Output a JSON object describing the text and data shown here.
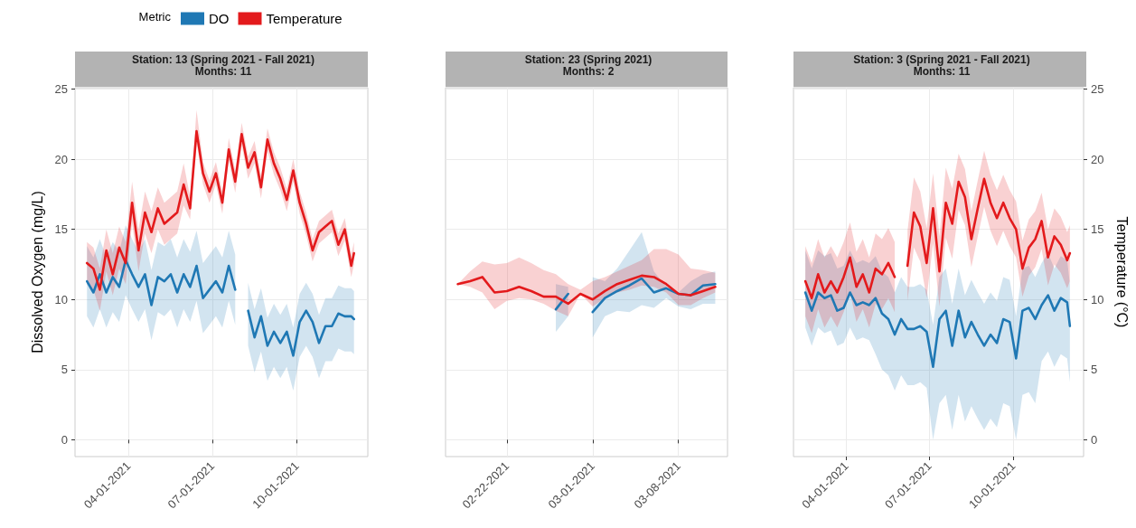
{
  "chart_data": [
    {
      "type": "line",
      "title": "Station: 13 (Spring 2021 - Fall 2021)",
      "subtitle": "Months: 11",
      "ylabel": "Dissolved Oxygen (mg/L)",
      "legend": "top",
      "legend_title": "Metric",
      "grid": true,
      "x": [
        "2021-02-15",
        "2021-02-22",
        "2021-03-01",
        "2021-03-08",
        "2021-03-15",
        "2021-03-22",
        "2021-03-29",
        "2021-04-05",
        "2021-04-12",
        "2021-04-19",
        "2021-04-26",
        "2021-05-03",
        "2021-05-10",
        "2021-05-17",
        "2021-05-24",
        "2021-05-31",
        "2021-06-07",
        "2021-06-14",
        "2021-06-21",
        "2021-06-28",
        "2021-07-05",
        "2021-07-12",
        "2021-07-19",
        "2021-07-26",
        "2021-08-02",
        "2021-08-09",
        "2021-08-16",
        "2021-08-23",
        "2021-08-30",
        "2021-09-06",
        "2021-09-13",
        "2021-09-20",
        "2021-09-27",
        "2021-10-04",
        "2021-10-11",
        "2021-10-18",
        "2021-10-25",
        "2021-11-01",
        "2021-11-08",
        "2021-11-15",
        "2021-11-22",
        "2021-11-29",
        "2021-12-02"
      ],
      "xlim": [
        "2021-02-02",
        "2021-12-17"
      ],
      "xticks": [
        {
          "value": "2021-04-01",
          "label": "04-01-2021"
        },
        {
          "value": "2021-07-01",
          "label": "07-01-2021"
        },
        {
          "value": "2021-10-01",
          "label": "10-01-2021"
        }
      ],
      "ylim": [
        -1.2,
        25.1
      ],
      "yticks": [
        0,
        5,
        10,
        15,
        20,
        25
      ],
      "series": [
        {
          "name": "DO",
          "color": "#1f78b4",
          "values": [
            11.3,
            10.5,
            11.8,
            10.5,
            11.6,
            10.9,
            12.8,
            11.8,
            10.9,
            11.8,
            9.6,
            11.6,
            11.3,
            11.8,
            10.5,
            11.8,
            10.9,
            12.4,
            10.1,
            10.7,
            11.3,
            10.5,
            12.4,
            10.7,
            null,
            9.2,
            7.3,
            8.8,
            6.7,
            7.7,
            6.9,
            7.7,
            6.0,
            8.4,
            9.2,
            8.4,
            6.9,
            8.1,
            8.1,
            9.0,
            8.8,
            8.8,
            8.6
          ],
          "lower": [
            8.8,
            8.0,
            9.3,
            8.0,
            9.1,
            8.4,
            10.3,
            9.3,
            8.4,
            9.3,
            7.1,
            9.1,
            8.8,
            9.3,
            8.0,
            9.3,
            8.4,
            9.9,
            7.6,
            8.2,
            8.8,
            8.0,
            9.9,
            8.2,
            null,
            6.7,
            4.8,
            6.3,
            4.2,
            5.2,
            4.4,
            5.2,
            3.5,
            5.9,
            6.7,
            5.9,
            4.4,
            5.6,
            5.6,
            6.5,
            6.3,
            6.3,
            6.1
          ],
          "upper": [
            13.8,
            13.0,
            14.3,
            13.0,
            14.1,
            13.4,
            15.3,
            14.3,
            13.4,
            14.3,
            12.1,
            14.1,
            13.8,
            14.3,
            13.0,
            14.3,
            13.4,
            14.9,
            12.6,
            13.2,
            13.8,
            13.0,
            14.9,
            13.2,
            null,
            11.2,
            9.3,
            10.8,
            8.7,
            9.7,
            8.9,
            9.7,
            8.0,
            10.4,
            11.2,
            10.4,
            8.9,
            10.1,
            10.1,
            11.0,
            10.8,
            10.8,
            10.6
          ]
        },
        {
          "name": "Temperature",
          "color": "#e31a1c",
          "values": [
            12.6,
            12.2,
            10.7,
            13.5,
            11.8,
            13.7,
            12.6,
            16.9,
            13.5,
            16.2,
            14.8,
            16.5,
            15.4,
            15.8,
            16.2,
            18.2,
            16.5,
            22.0,
            19.0,
            17.7,
            19.0,
            16.9,
            20.7,
            18.4,
            21.8,
            19.4,
            20.5,
            18.0,
            21.4,
            19.7,
            18.6,
            17.1,
            19.2,
            16.9,
            15.4,
            13.5,
            14.8,
            15.2,
            15.6,
            13.9,
            15.0,
            12.4,
            13.3
          ],
          "lower": [
            11.1,
            10.7,
            9.2,
            12.0,
            10.3,
            12.2,
            11.1,
            15.4,
            12.0,
            14.7,
            13.3,
            15.0,
            13.9,
            14.3,
            14.7,
            16.7,
            15.7,
            21.2,
            18.2,
            16.9,
            18.2,
            16.1,
            19.9,
            17.6,
            21.0,
            18.6,
            19.7,
            17.2,
            20.6,
            18.9,
            17.8,
            16.3,
            18.4,
            16.1,
            14.6,
            12.7,
            14.0,
            14.4,
            14.8,
            13.1,
            14.2,
            11.6,
            12.5
          ],
          "upper": [
            14.1,
            13.7,
            12.2,
            15.0,
            13.3,
            15.2,
            14.1,
            18.4,
            15.0,
            17.7,
            16.3,
            18.0,
            16.9,
            17.3,
            17.7,
            19.7,
            17.3,
            23.5,
            19.8,
            18.5,
            19.8,
            17.7,
            21.5,
            19.2,
            22.6,
            20.2,
            21.3,
            18.8,
            22.2,
            20.5,
            19.4,
            17.9,
            20.0,
            17.7,
            16.2,
            14.3,
            15.6,
            16.0,
            16.4,
            14.7,
            15.8,
            13.2,
            14.1
          ]
        }
      ]
    },
    {
      "type": "line",
      "title": "Station: 23 (Spring 2021)",
      "subtitle": "Months: 2",
      "grid": true,
      "tick_labels": "x",
      "x": [
        "2021-02-18",
        "2021-02-19",
        "2021-02-20",
        "2021-02-21",
        "2021-02-22",
        "2021-02-23",
        "2021-02-24",
        "2021-02-25",
        "2021-02-26",
        "2021-02-27",
        "2021-02-28",
        "2021-03-01",
        "2021-03-02",
        "2021-03-03",
        "2021-03-04",
        "2021-03-05",
        "2021-03-06",
        "2021-03-07",
        "2021-03-08",
        "2021-03-09",
        "2021-03-10",
        "2021-03-11"
      ],
      "xlim": [
        "2021-02-17",
        "2021-03-12"
      ],
      "xticks": [
        {
          "value": "2021-02-22",
          "label": "02-22-2021"
        },
        {
          "value": "2021-03-01",
          "label": "03-01-2021"
        },
        {
          "value": "2021-03-08",
          "label": "03-08-2021"
        }
      ],
      "ylim": [
        -1.2,
        25.1
      ],
      "yticks": [
        0,
        5,
        10,
        15,
        20,
        25
      ],
      "series": [
        {
          "color": "#1f78b4",
          "values": [
            null,
            null,
            null,
            null,
            null,
            null,
            null,
            null,
            9.3,
            10.4,
            null,
            9.1,
            10.1,
            10.6,
            11.0,
            11.5,
            10.5,
            10.8,
            10.4,
            10.3,
            11.0,
            11.1
          ],
          "lower": [
            null,
            null,
            null,
            null,
            null,
            null,
            null,
            null,
            7.7,
            8.8,
            null,
            7.3,
            8.8,
            9.2,
            9.1,
            9.6,
            9.4,
            10.1,
            9.5,
            9.3,
            9.7,
            9.7
          ],
          "upper": [
            null,
            null,
            null,
            null,
            null,
            null,
            null,
            null,
            11.1,
            10.9,
            null,
            11.6,
            11.3,
            12.2,
            13.5,
            14.8,
            12.0,
            10.9,
            10.5,
            11.3,
            11.8,
            12.0
          ]
        },
        {
          "color": "#e31a1c",
          "values": [
            11.1,
            11.3,
            11.6,
            10.5,
            10.6,
            10.9,
            10.6,
            10.2,
            10.2,
            9.7,
            10.4,
            10.0,
            10.6,
            11.1,
            11.4,
            11.7,
            11.6,
            11.1,
            10.4,
            10.3,
            10.6,
            10.9
          ],
          "lower": [
            11.1,
            10.9,
            10.5,
            9.3,
            9.9,
            10.1,
            10.0,
            9.7,
            9.2,
            8.8,
            10.4,
            9.5,
            10.1,
            10.5,
            10.7,
            11.0,
            10.9,
            10.5,
            9.6,
            9.6,
            10.1,
            10.5
          ],
          "upper": [
            11.1,
            12.0,
            12.7,
            12.5,
            12.6,
            13.0,
            12.6,
            12.1,
            11.8,
            11.1,
            10.7,
            11.3,
            11.6,
            12.0,
            12.4,
            12.8,
            13.6,
            13.6,
            13.2,
            12.2,
            12.1,
            11.9
          ]
        }
      ]
    },
    {
      "type": "line",
      "title": "Station: 3 (Spring 2021 - Fall 2021)",
      "subtitle": "Months: 11",
      "y2label": "Temperature (°C)",
      "grid": true,
      "x": [
        "2021-02-15",
        "2021-02-22",
        "2021-03-01",
        "2021-03-08",
        "2021-03-15",
        "2021-03-22",
        "2021-03-29",
        "2021-04-05",
        "2021-04-12",
        "2021-04-19",
        "2021-04-26",
        "2021-05-03",
        "2021-05-10",
        "2021-05-17",
        "2021-05-24",
        "2021-05-31",
        "2021-06-07",
        "2021-06-14",
        "2021-06-21",
        "2021-06-28",
        "2021-07-05",
        "2021-07-12",
        "2021-07-19",
        "2021-07-26",
        "2021-08-02",
        "2021-08-09",
        "2021-08-16",
        "2021-08-23",
        "2021-08-30",
        "2021-09-06",
        "2021-09-13",
        "2021-09-20",
        "2021-09-27",
        "2021-10-04",
        "2021-10-11",
        "2021-10-18",
        "2021-10-25",
        "2021-11-01",
        "2021-11-08",
        "2021-11-15",
        "2021-11-22",
        "2021-11-29",
        "2021-12-02"
      ],
      "xlim": [
        "2021-02-02",
        "2021-12-17"
      ],
      "xticks": [
        {
          "value": "2021-04-01",
          "label": "04-01-2021"
        },
        {
          "value": "2021-07-01",
          "label": "07-01-2021"
        },
        {
          "value": "2021-10-01",
          "label": "10-01-2021"
        }
      ],
      "y2lim": [
        -1.2,
        25.1
      ],
      "y2ticks": [
        0,
        5,
        10,
        15,
        20,
        25
      ],
      "series": [
        {
          "color": "#1f78b4",
          "axis": "y2",
          "values": [
            10.5,
            9.2,
            10.5,
            10.1,
            10.3,
            9.2,
            9.4,
            10.5,
            9.6,
            9.8,
            9.6,
            10.1,
            9.0,
            8.6,
            7.5,
            8.6,
            7.9,
            7.9,
            8.1,
            7.7,
            5.2,
            8.6,
            9.2,
            6.7,
            9.2,
            7.3,
            8.4,
            7.5,
            6.7,
            7.5,
            6.9,
            8.6,
            8.4,
            5.8,
            9.2,
            9.4,
            8.6,
            9.6,
            10.3,
            9.2,
            10.1,
            9.8,
            8.1
          ],
          "lower": [
            8.0,
            6.7,
            8.0,
            7.6,
            7.8,
            6.7,
            6.9,
            8.0,
            7.1,
            7.3,
            7.1,
            6.1,
            5.0,
            4.6,
            3.5,
            4.6,
            3.9,
            3.9,
            4.1,
            3.7,
            0.0,
            2.6,
            3.2,
            0.7,
            3.2,
            1.3,
            2.4,
            1.5,
            0.7,
            1.5,
            0.9,
            2.6,
            2.4,
            0.0,
            3.2,
            3.4,
            2.6,
            5.6,
            6.3,
            5.2,
            6.1,
            5.8,
            4.1
          ],
          "upper": [
            13.5,
            12.2,
            13.5,
            13.1,
            13.3,
            12.2,
            12.4,
            13.5,
            12.6,
            12.8,
            12.6,
            13.1,
            12.0,
            11.6,
            10.5,
            11.6,
            10.9,
            10.9,
            11.1,
            10.7,
            8.2,
            11.6,
            12.2,
            9.7,
            12.2,
            10.3,
            11.4,
            10.5,
            9.7,
            10.5,
            9.9,
            11.6,
            11.4,
            8.8,
            12.2,
            12.4,
            11.6,
            12.6,
            13.3,
            12.2,
            13.1,
            12.8,
            11.1
          ]
        },
        {
          "color": "#e31a1c",
          "axis": "y2",
          "values": [
            11.3,
            10.1,
            11.8,
            10.5,
            11.3,
            10.5,
            11.6,
            13.0,
            10.9,
            11.8,
            10.5,
            12.2,
            11.8,
            12.6,
            11.6,
            null,
            12.4,
            16.2,
            15.2,
            12.6,
            16.5,
            12.0,
            16.9,
            15.4,
            18.4,
            17.3,
            14.3,
            16.5,
            18.6,
            16.9,
            15.8,
            16.9,
            15.8,
            15.0,
            12.2,
            13.7,
            14.3,
            15.6,
            13.0,
            14.5,
            13.9,
            12.8,
            13.3
          ],
          "lower": [
            8.8,
            7.6,
            9.3,
            8.0,
            8.8,
            8.0,
            9.1,
            10.5,
            8.4,
            9.3,
            8.0,
            9.7,
            9.3,
            10.1,
            9.1,
            null,
            9.9,
            13.7,
            12.7,
            10.1,
            14.0,
            9.5,
            14.4,
            12.9,
            16.4,
            15.3,
            12.3,
            14.5,
            16.6,
            14.9,
            13.8,
            14.9,
            13.8,
            13.0,
            10.2,
            11.7,
            12.3,
            13.6,
            11.0,
            12.5,
            11.9,
            10.8,
            11.3
          ],
          "upper": [
            13.8,
            12.6,
            14.3,
            13.0,
            13.8,
            13.0,
            14.1,
            15.5,
            13.4,
            14.3,
            13.0,
            14.7,
            14.3,
            15.1,
            14.1,
            null,
            14.9,
            18.7,
            17.7,
            15.1,
            19.0,
            14.5,
            19.4,
            17.9,
            20.4,
            19.3,
            16.3,
            18.5,
            20.6,
            18.9,
            17.8,
            18.9,
            17.8,
            17.0,
            14.2,
            15.7,
            16.3,
            17.6,
            15.0,
            16.5,
            15.9,
            14.8,
            15.3
          ]
        }
      ]
    }
  ]
}
